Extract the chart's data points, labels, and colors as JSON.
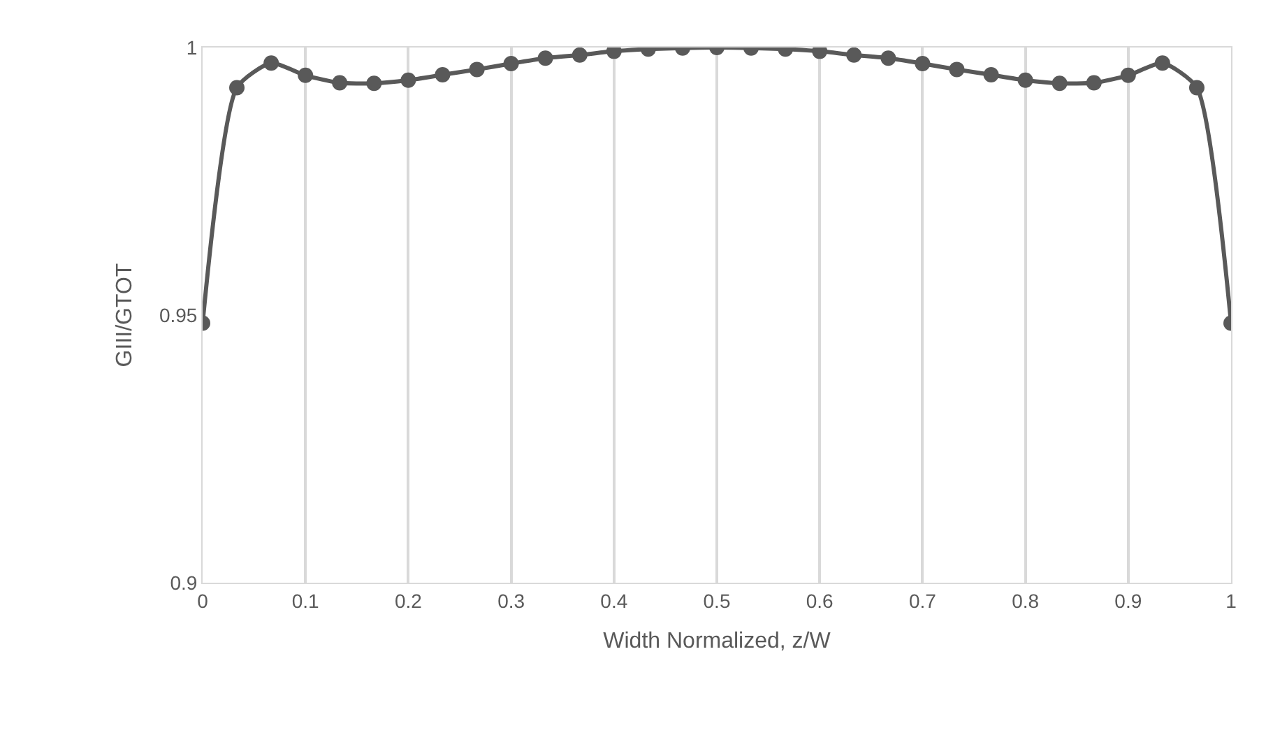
{
  "chart_data": {
    "type": "line",
    "xlabel": "Width Normalized, z/W",
    "ylabel": "GIII/GTOT",
    "x": [
      0,
      0.0333,
      0.0667,
      0.1,
      0.1333,
      0.1667,
      0.2,
      0.2333,
      0.2667,
      0.3,
      0.3333,
      0.3667,
      0.4,
      0.4333,
      0.4667,
      0.5,
      0.5333,
      0.5667,
      0.6,
      0.6333,
      0.6667,
      0.7,
      0.7333,
      0.7667,
      0.8,
      0.8333,
      0.8667,
      0.9,
      0.9333,
      0.9667,
      1
    ],
    "series": [
      {
        "color": "#595959",
        "values": [
          0.9485,
          0.9925,
          0.9971,
          0.9948,
          0.9934,
          0.9933,
          0.9939,
          0.9949,
          0.9959,
          0.997,
          0.998,
          0.9986,
          0.9993,
          0.9997,
          0.9999,
          1.0,
          0.9999,
          0.9997,
          0.9993,
          0.9986,
          0.998,
          0.997,
          0.9959,
          0.9949,
          0.9939,
          0.9933,
          0.9934,
          0.9948,
          0.9971,
          0.9925,
          0.9485
        ]
      }
    ],
    "xlim": [
      0,
      1
    ],
    "xticks": [
      0,
      0.1,
      0.2,
      0.3,
      0.4,
      0.5,
      0.6,
      0.7,
      0.8,
      0.9,
      1
    ],
    "ylim": [
      0.9,
      1
    ],
    "yticks": [
      0.9,
      0.95,
      1
    ],
    "grid": "x",
    "marker": "circle",
    "line_style": "solid"
  }
}
